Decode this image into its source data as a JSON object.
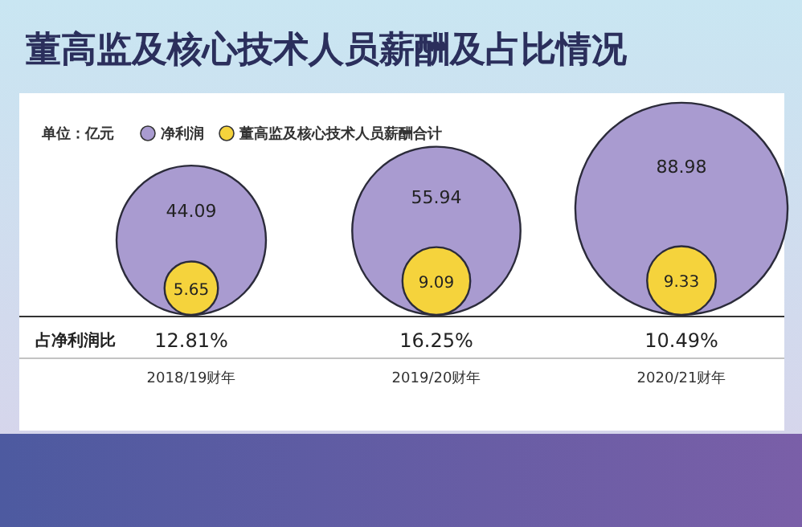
{
  "chart_data": {
    "type": "other",
    "title": "董高监及核心技术人员薪酬及占比情况",
    "categories": [
      "2018/19财年",
      "2019/20财年",
      "2020/21财年"
    ],
    "series": [
      {
        "name": "净利润",
        "color": "#a99bd0",
        "values": [
          44.09,
          55.94,
          88.98
        ]
      },
      {
        "name": "董高监及核心技术人员薪酬合计",
        "color": "#f5d33c",
        "values": [
          5.65,
          9.09,
          9.33
        ]
      }
    ],
    "data_labels": true,
    "legend": "top left",
    "annotations": [
      "单位：亿元",
      "占净利润比",
      "12.81%",
      "16.25%",
      "10.49%"
    ]
  }
}
